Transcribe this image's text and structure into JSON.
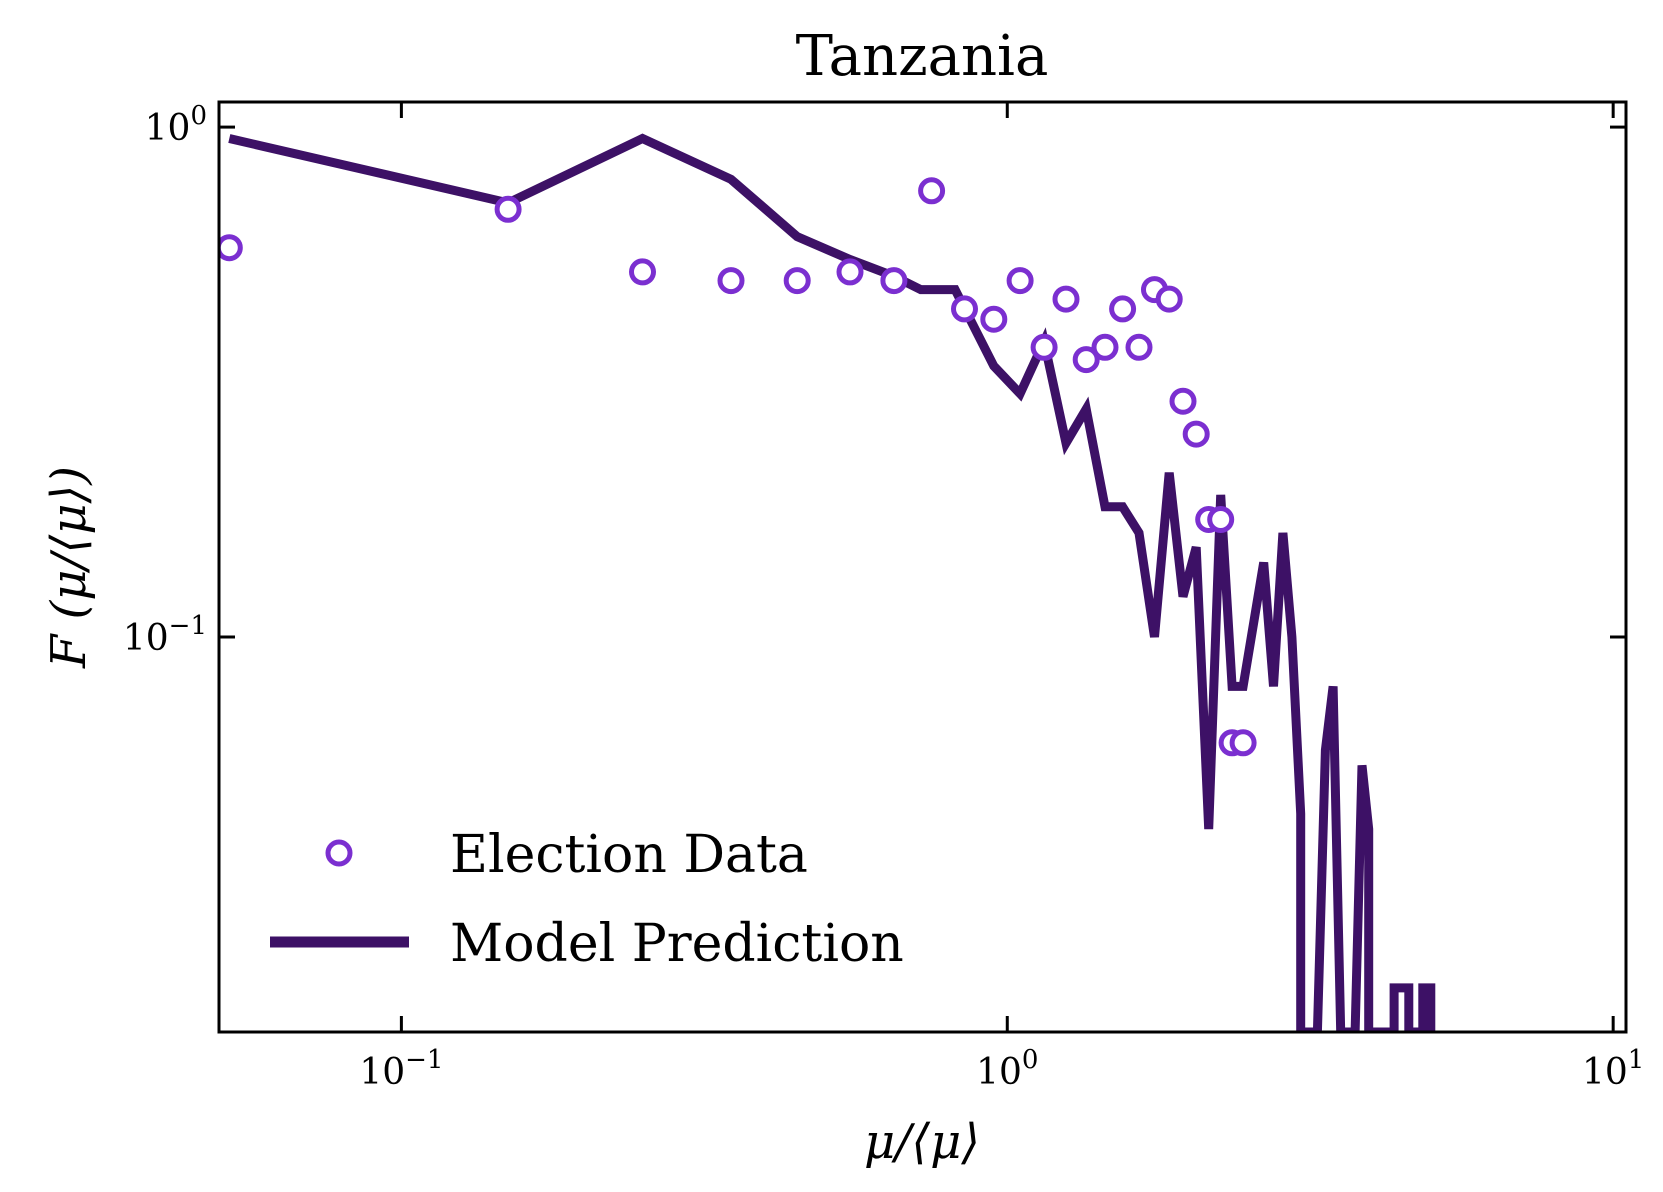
{
  "chart_data": {
    "type": "scatter",
    "title": "Tanzania",
    "xlabel": "μ/⟨μ⟩",
    "ylabel": "F (μ/⟨μ⟩)",
    "xscale": "log",
    "yscale": "log",
    "xlim": [
      0.05,
      10.5
    ],
    "ylim": [
      0.0168,
      1.12
    ],
    "x_ticks": [
      {
        "value": 0.1,
        "base": "10",
        "exp": "−1"
      },
      {
        "value": 1,
        "base": "10",
        "exp": "0"
      },
      {
        "value": 10,
        "base": "10",
        "exp": "1"
      }
    ],
    "y_ticks": [
      {
        "value": 0.1,
        "base": "10",
        "exp": "−1"
      },
      {
        "value": 1,
        "base": "10",
        "exp": "0"
      }
    ],
    "legend": {
      "position": "lower-left",
      "entries": [
        "Election Data",
        "Model Prediction"
      ]
    },
    "series": [
      {
        "name": "Election Data",
        "kind": "scatter",
        "marker": "open-circle",
        "color": "#7b2fd0",
        "points": [
          [
            0.052,
            0.58
          ],
          [
            0.15,
            0.69
          ],
          [
            0.25,
            0.52
          ],
          [
            0.35,
            0.5
          ],
          [
            0.45,
            0.5
          ],
          [
            0.55,
            0.52
          ],
          [
            0.65,
            0.5
          ],
          [
            0.75,
            0.75
          ],
          [
            0.85,
            0.44
          ],
          [
            0.95,
            0.42
          ],
          [
            1.05,
            0.5
          ],
          [
            1.15,
            0.37
          ],
          [
            1.25,
            0.46
          ],
          [
            1.35,
            0.35
          ],
          [
            1.45,
            0.37
          ],
          [
            1.55,
            0.44
          ],
          [
            1.65,
            0.37
          ],
          [
            1.75,
            0.48
          ],
          [
            1.85,
            0.46
          ],
          [
            1.95,
            0.29
          ],
          [
            2.05,
            0.25
          ],
          [
            2.15,
            0.17
          ],
          [
            2.25,
            0.17
          ],
          [
            2.35,
            0.062
          ],
          [
            2.45,
            0.062
          ]
        ]
      },
      {
        "name": "Model Prediction",
        "kind": "line",
        "color": "#3d1166",
        "points": [
          [
            0.052,
            0.95
          ],
          [
            0.15,
            0.71
          ],
          [
            0.25,
            0.95
          ],
          [
            0.35,
            0.79
          ],
          [
            0.45,
            0.61
          ],
          [
            0.55,
            0.55
          ],
          [
            0.65,
            0.51
          ],
          [
            0.72,
            0.48
          ],
          [
            0.82,
            0.48
          ],
          [
            0.95,
            0.34
          ],
          [
            1.05,
            0.3
          ],
          [
            1.15,
            0.38
          ],
          [
            1.25,
            0.24
          ],
          [
            1.35,
            0.28
          ],
          [
            1.45,
            0.18
          ],
          [
            1.55,
            0.18
          ],
          [
            1.65,
            0.16
          ],
          [
            1.75,
            0.1
          ],
          [
            1.85,
            0.21
          ],
          [
            1.95,
            0.12
          ],
          [
            2.05,
            0.15
          ],
          [
            2.15,
            0.042
          ],
          [
            2.25,
            0.19
          ],
          [
            2.35,
            0.08
          ],
          [
            2.45,
            0.08
          ],
          [
            2.65,
            0.14
          ],
          [
            2.75,
            0.08
          ],
          [
            2.85,
            0.16
          ],
          [
            2.95,
            0.1
          ],
          [
            3.05,
            0.045
          ],
          [
            3.05,
            0.0168
          ],
          [
            3.25,
            0.0168
          ],
          [
            3.35,
            0.06
          ],
          [
            3.45,
            0.08
          ],
          [
            3.55,
            0.0168
          ],
          [
            3.75,
            0.0168
          ],
          [
            3.85,
            0.056
          ],
          [
            3.95,
            0.042
          ],
          [
            3.95,
            0.0168
          ],
          [
            4.35,
            0.0168
          ],
          [
            4.35,
            0.0205
          ],
          [
            4.6,
            0.0205
          ],
          [
            4.6,
            0.0168
          ],
          [
            4.85,
            0.0168
          ],
          [
            4.85,
            0.0205
          ],
          [
            5.0,
            0.0205
          ],
          [
            5.0,
            0.0168
          ]
        ]
      }
    ]
  }
}
